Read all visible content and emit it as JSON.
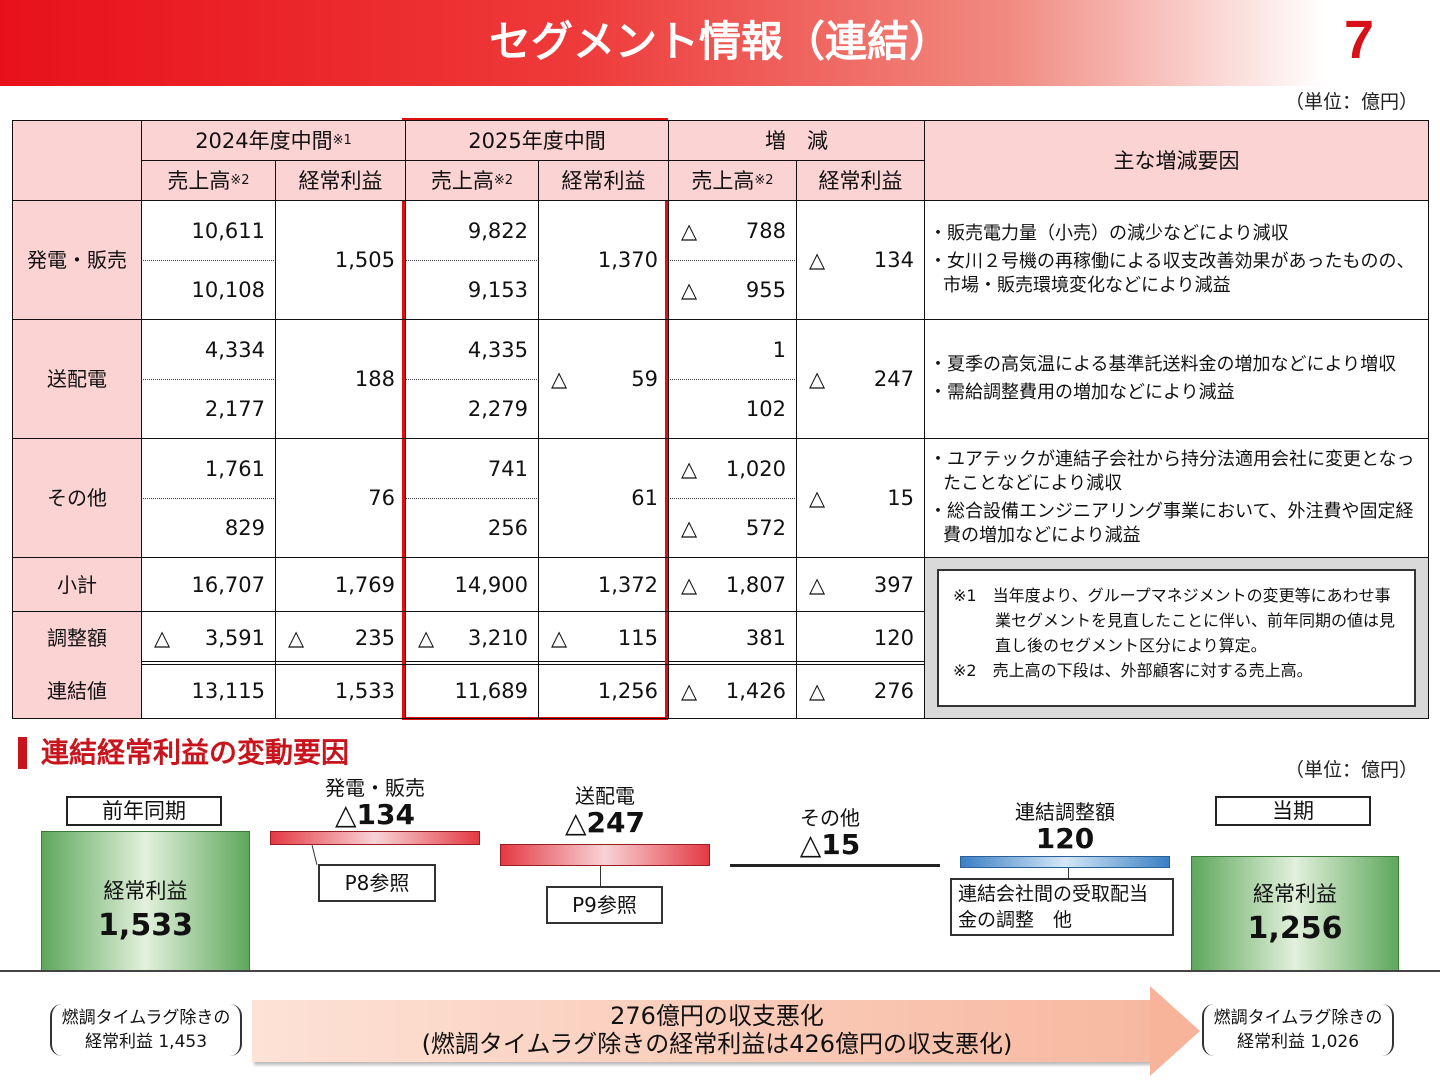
{
  "header": {
    "title": "セグメント情報（連結）",
    "page": "7"
  },
  "unit": "（単位：億円）",
  "table": {
    "groups": [
      "2024年度中間",
      "2025年度中間",
      "増　減"
    ],
    "group_notes": [
      "※1",
      "",
      ""
    ],
    "sub_headers": [
      "売上高",
      "経常利益",
      "売上高",
      "経常利益",
      "売上高",
      "経常利益"
    ],
    "sales_note": "※2",
    "reasons_header": "主な増減要因",
    "segments": [
      {
        "label": "発電・販売",
        "sales_2024": [
          "10,611",
          "10,108"
        ],
        "profit_2024": "1,505",
        "sales_2025": [
          "9,822",
          "9,153"
        ],
        "profit_2025": "1,370",
        "sales_diff": [
          "△ 788",
          "△ 955"
        ],
        "profit_diff": "△ 134",
        "reasons": [
          "・販売電力量（小売）の減少などにより減収",
          "・女川２号機の再稼働による収支改善効果があったものの、市場・販売環境変化などにより減益"
        ]
      },
      {
        "label": "送配電",
        "sales_2024": [
          "4,334",
          "2,177"
        ],
        "profit_2024": "188",
        "sales_2025": [
          "4,335",
          "2,279"
        ],
        "profit_2025": "△ 59",
        "sales_diff": [
          "1",
          "102"
        ],
        "profit_diff": "△ 247",
        "reasons": [
          "・夏季の高気温による基準託送料金の増加などにより増収",
          "・需給調整費用の増加などにより減益"
        ]
      },
      {
        "label": "その他",
        "sales_2024": [
          "1,761",
          "829"
        ],
        "profit_2024": "76",
        "sales_2025": [
          "741",
          "256"
        ],
        "profit_2025": "61",
        "sales_diff": [
          "△ 1,020",
          "△ 572"
        ],
        "profit_diff": "△ 15",
        "reasons": [
          "・ユアテックが連結子会社から持分法適用会社に変更となったことなどにより減収",
          "・総合設備エンジニアリング事業において、外注費や固定経費の増加などにより減益"
        ]
      }
    ],
    "totals": [
      {
        "label": "小計",
        "values": [
          "16,707",
          "1,769",
          "14,900",
          "1,372",
          "△ 1,807",
          "△ 397"
        ]
      },
      {
        "label": "調整額",
        "values": [
          "△ 3,591",
          "△ 235",
          "△ 3,210",
          "△ 115",
          "381",
          "120"
        ]
      },
      {
        "label": "連結値",
        "values": [
          "13,115",
          "1,533",
          "11,689",
          "1,256",
          "△ 1,426",
          "△ 276"
        ]
      }
    ],
    "notes": [
      "※1　当年度より、グループマネジメントの変更等にあわせ事業セグメントを見直したことに伴い、前年同期の値は見直し後のセグメント区分により算定。",
      "※2　売上高の下段は、外部顧客に対する売上高。"
    ]
  },
  "waterfall": {
    "title": "連結経常利益の変動要因",
    "unit": "（単位：億円）",
    "prev": {
      "label": "前年同期",
      "inner": "経常利益",
      "value": "1,533"
    },
    "steps": [
      {
        "label": "発電・販売",
        "value": "△134",
        "ref": "P8参照"
      },
      {
        "label": "送配電",
        "value": "△247",
        "ref": "P9参照"
      },
      {
        "label": "その他",
        "value": "△15"
      },
      {
        "label": "連結調整額",
        "value": "120",
        "note": "連結会社間の受取配当金の調整　他"
      }
    ],
    "curr": {
      "label": "当期",
      "inner": "経常利益",
      "value": "1,256"
    },
    "prev_excl": [
      "燃調タイムラグ除きの",
      "経常利益 1,453"
    ],
    "curr_excl": [
      "燃調タイムラグ除きの",
      "経常利益 1,026"
    ],
    "summary": [
      "276億円の収支悪化",
      "(燃調タイムラグ除きの経常利益は426億円の収支悪化)"
    ],
    "colors": {
      "base": "#5ea85c",
      "decrease": "#e43a44",
      "increase": "#3a7fc4"
    }
  }
}
